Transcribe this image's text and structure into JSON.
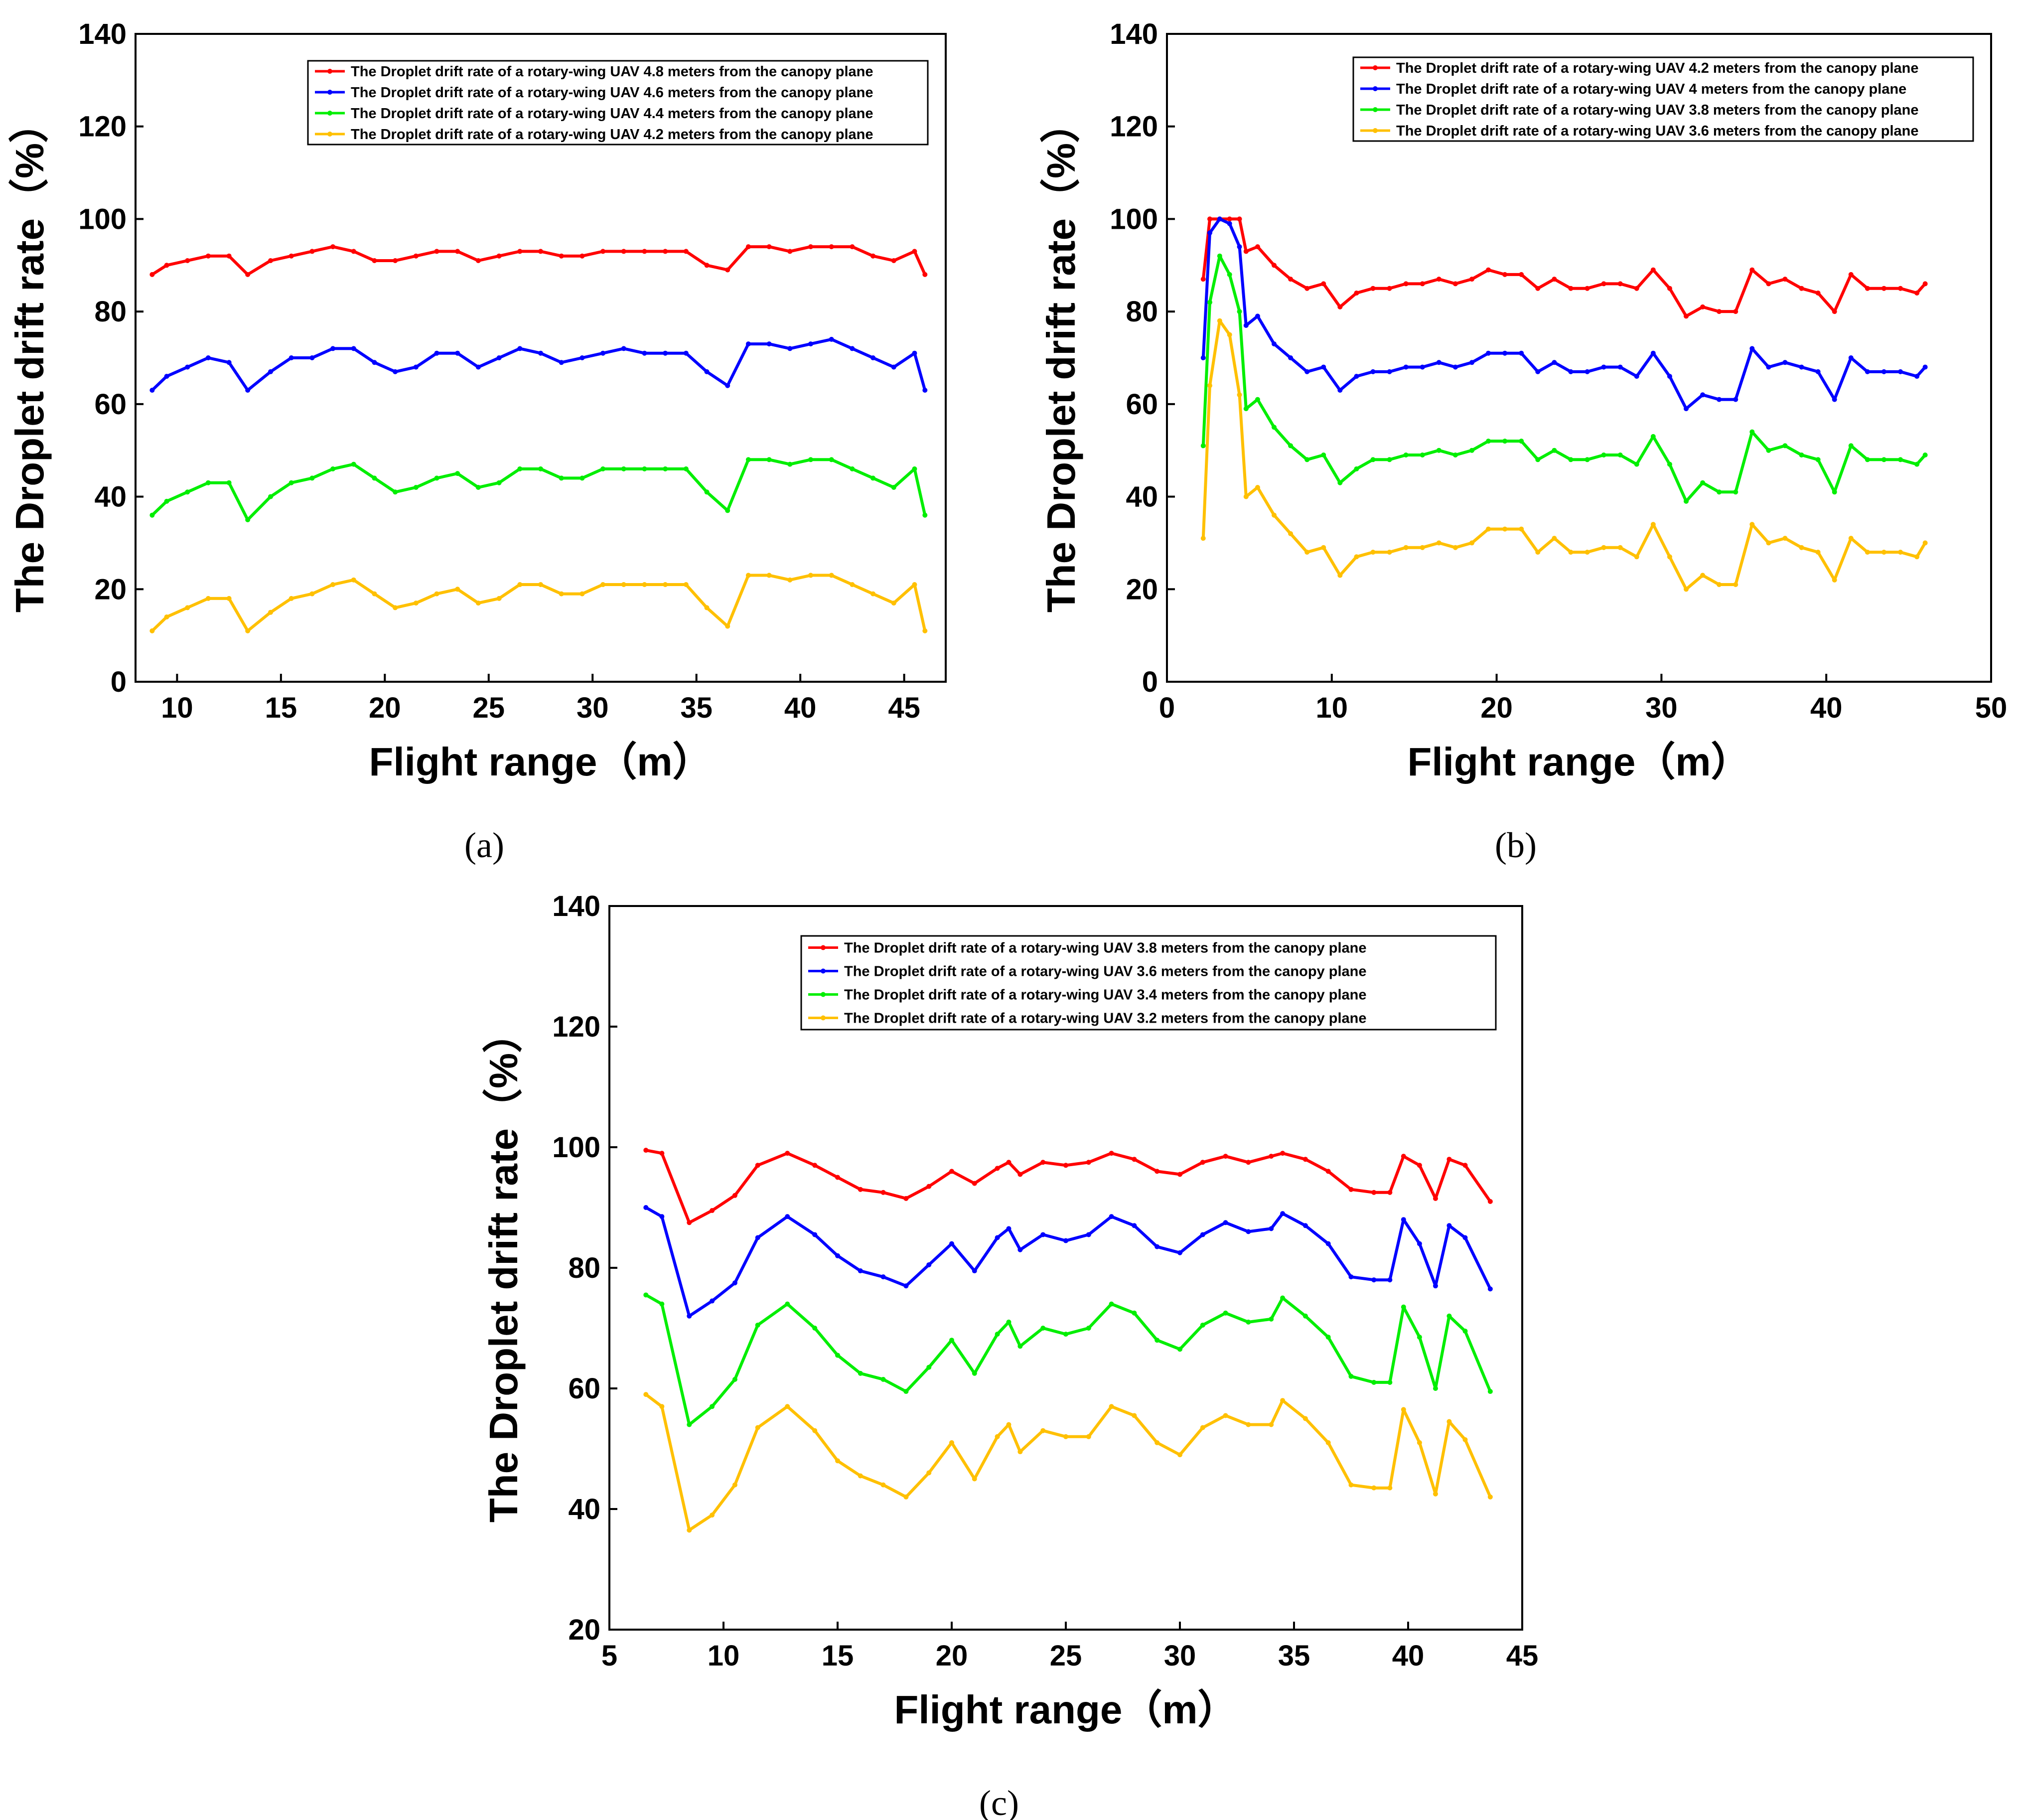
{
  "chart_data": [
    {
      "type": "line",
      "panel_label": "(a)",
      "xlabel": "Flight range（m）",
      "ylabel": "The Droplet drift rate（%）",
      "xlim": [
        8,
        47
      ],
      "ylim": [
        0,
        140
      ],
      "x_ticks": [
        10,
        15,
        20,
        25,
        30,
        35,
        40,
        45
      ],
      "y_ticks": [
        0,
        20,
        40,
        60,
        80,
        100,
        120,
        140
      ],
      "grid": false,
      "legend_position": "top-right",
      "x": [
        8.8,
        9.5,
        10.5,
        11.5,
        12.5,
        13.4,
        14.5,
        15.5,
        16.5,
        17.5,
        18.5,
        19.5,
        20.5,
        21.5,
        22.5,
        23.5,
        24.5,
        25.5,
        26.5,
        27.5,
        28.5,
        29.5,
        30.5,
        31.5,
        32.5,
        33.5,
        34.5,
        35.5,
        36.5,
        37.5,
        38.5,
        39.5,
        40.5,
        41.5,
        42.5,
        43.5,
        44.5,
        45.5,
        46.0
      ],
      "series": [
        {
          "name": "The Droplet drift rate of a rotary-wing UAV 4.8 meters from the canopy plane",
          "color": "#ff0000",
          "values": [
            88,
            90,
            91,
            92,
            92,
            88,
            91,
            92,
            93,
            94,
            93,
            91,
            91,
            92,
            93,
            93,
            91,
            92,
            93,
            93,
            92,
            92,
            93,
            93,
            93,
            93,
            93,
            90,
            89,
            94,
            94,
            93,
            94,
            94,
            94,
            92,
            91,
            93,
            88
          ]
        },
        {
          "name": "The Droplet drift rate of a rotary-wing UAV 4.6 meters from the canopy plane",
          "color": "#0000ff",
          "values": [
            63,
            66,
            68,
            70,
            69,
            63,
            67,
            70,
            70,
            72,
            72,
            69,
            67,
            68,
            71,
            71,
            68,
            70,
            72,
            71,
            69,
            70,
            71,
            72,
            71,
            71,
            71,
            67,
            64,
            73,
            73,
            72,
            73,
            74,
            72,
            70,
            68,
            71,
            63
          ]
        },
        {
          "name": "The Droplet drift rate of a rotary-wing UAV 4.4 meters from the canopy plane",
          "color": "#00ee00",
          "values": [
            36,
            39,
            41,
            43,
            43,
            35,
            40,
            43,
            44,
            46,
            47,
            44,
            41,
            42,
            44,
            45,
            42,
            43,
            46,
            46,
            44,
            44,
            46,
            46,
            46,
            46,
            46,
            41,
            37,
            48,
            48,
            47,
            48,
            48,
            46,
            44,
            42,
            46,
            36
          ]
        },
        {
          "name": "The Droplet drift rate of a rotary-wing UAV 4.2 meters from the canopy plane",
          "color": "#ffc000",
          "values": [
            11,
            14,
            16,
            18,
            18,
            11,
            15,
            18,
            19,
            21,
            22,
            19,
            16,
            17,
            19,
            20,
            17,
            18,
            21,
            21,
            19,
            19,
            21,
            21,
            21,
            21,
            21,
            16,
            12,
            23,
            23,
            22,
            23,
            23,
            21,
            19,
            17,
            21,
            11
          ]
        }
      ]
    },
    {
      "type": "line",
      "panel_label": "(b)",
      "xlabel": "Flight range（m）",
      "ylabel": "The Droplet drift rate（%）",
      "xlim": [
        0,
        50
      ],
      "ylim": [
        0,
        140
      ],
      "x_ticks": [
        0,
        10,
        20,
        30,
        40,
        50
      ],
      "y_ticks": [
        0,
        20,
        40,
        60,
        80,
        100,
        120,
        140
      ],
      "grid": false,
      "legend_position": "top-right",
      "x": [
        2.2,
        2.6,
        3.2,
        3.8,
        4.4,
        4.8,
        5.5,
        6.5,
        7.5,
        8.5,
        9.5,
        10.5,
        11.5,
        12.5,
        13.5,
        14.5,
        15.5,
        16.5,
        17.5,
        18.5,
        19.5,
        20.5,
        21.5,
        22.5,
        23.5,
        24.5,
        25.5,
        26.5,
        27.5,
        28.5,
        29.5,
        30.5,
        31.5,
        32.5,
        33.5,
        34.5,
        35.5,
        36.5,
        37.5,
        38.5,
        39.5,
        40.5,
        41.5,
        42.5,
        43.5,
        44.5,
        45.5,
        46.0
      ],
      "series": [
        {
          "name": "The Droplet drift rate of a rotary-wing UAV 4.2 meters from the canopy plane",
          "color": "#ff0000",
          "values": [
            87,
            100,
            100,
            100,
            100,
            93,
            94,
            90,
            87,
            85,
            86,
            81,
            84,
            85,
            85,
            86,
            86,
            87,
            86,
            87,
            89,
            88,
            88,
            85,
            87,
            85,
            85,
            86,
            86,
            85,
            89,
            85,
            79,
            81,
            80,
            80,
            89,
            86,
            87,
            85,
            84,
            80,
            88,
            85,
            85,
            85,
            84,
            86
          ]
        },
        {
          "name": "The Droplet drift rate of a rotary-wing UAV 4 meters from the canopy plane",
          "color": "#0000ff",
          "values": [
            70,
            97,
            100,
            99,
            94,
            77,
            79,
            73,
            70,
            67,
            68,
            63,
            66,
            67,
            67,
            68,
            68,
            69,
            68,
            69,
            71,
            71,
            71,
            67,
            69,
            67,
            67,
            68,
            68,
            66,
            71,
            66,
            59,
            62,
            61,
            61,
            72,
            68,
            69,
            68,
            67,
            61,
            70,
            67,
            67,
            67,
            66,
            68
          ]
        },
        {
          "name": "The Droplet drift rate of a rotary-wing UAV 3.8 meters from the canopy plane",
          "color": "#00ee00",
          "values": [
            51,
            82,
            92,
            88,
            80,
            59,
            61,
            55,
            51,
            48,
            49,
            43,
            46,
            48,
            48,
            49,
            49,
            50,
            49,
            50,
            52,
            52,
            52,
            48,
            50,
            48,
            48,
            49,
            49,
            47,
            53,
            47,
            39,
            43,
            41,
            41,
            54,
            50,
            51,
            49,
            48,
            41,
            51,
            48,
            48,
            48,
            47,
            49
          ]
        },
        {
          "name": "The Droplet drift rate of a rotary-wing UAV 3.6 meters from the canopy plane",
          "color": "#ffc000",
          "values": [
            31,
            64,
            78,
            75,
            62,
            40,
            42,
            36,
            32,
            28,
            29,
            23,
            27,
            28,
            28,
            29,
            29,
            30,
            29,
            30,
            33,
            33,
            33,
            28,
            31,
            28,
            28,
            29,
            29,
            27,
            34,
            27,
            20,
            23,
            21,
            21,
            34,
            30,
            31,
            29,
            28,
            22,
            31,
            28,
            28,
            28,
            27,
            30
          ]
        }
      ]
    },
    {
      "type": "line",
      "panel_label": "(c)",
      "xlabel": "Flight range（m）",
      "ylabel": "The Droplet drift rate（%）",
      "xlim": [
        5,
        45
      ],
      "ylim": [
        20,
        140
      ],
      "x_ticks": [
        5,
        10,
        15,
        20,
        25,
        30,
        35,
        40,
        45
      ],
      "y_ticks": [
        20,
        40,
        60,
        80,
        100,
        120,
        140
      ],
      "grid": false,
      "legend_position": "top-right",
      "x": [
        6.6,
        7.3,
        8.5,
        9.5,
        10.5,
        11.5,
        12.8,
        14.0,
        15.0,
        16.0,
        17.0,
        18.0,
        19.0,
        20.0,
        21.0,
        22.0,
        22.5,
        23.0,
        24.0,
        25.0,
        26.0,
        27.0,
        28.0,
        29.0,
        30.0,
        31.0,
        32.0,
        33.0,
        34.0,
        34.5,
        35.5,
        36.5,
        37.5,
        38.5,
        39.2,
        39.8,
        40.5,
        41.2,
        41.8,
        42.5,
        43.6
      ],
      "series": [
        {
          "name": "The Droplet drift rate of a rotary-wing UAV 3.8 meters from the canopy plane",
          "color": "#ff0000",
          "values": [
            99.5,
            99,
            87.5,
            89.5,
            92,
            97,
            99,
            97,
            95,
            93,
            92.5,
            91.5,
            93.5,
            96,
            94,
            96.5,
            97.5,
            95.5,
            97.5,
            97,
            97.5,
            99,
            98,
            96,
            95.5,
            97.5,
            98.5,
            97.5,
            98.5,
            99,
            98,
            96,
            93,
            92.5,
            92.5,
            98.5,
            97,
            91.5,
            98,
            97,
            91
          ]
        },
        {
          "name": "The Droplet drift rate of a rotary-wing UAV 3.6 meters from the canopy plane",
          "color": "#0000ff",
          "values": [
            90,
            88.5,
            72,
            74.5,
            77.5,
            85,
            88.5,
            85.5,
            82,
            79.5,
            78.5,
            77,
            80.5,
            84,
            79.5,
            85,
            86.5,
            83,
            85.5,
            84.5,
            85.5,
            88.5,
            87,
            83.5,
            82.5,
            85.5,
            87.5,
            86,
            86.5,
            89,
            87,
            84,
            78.5,
            78,
            78,
            88,
            84,
            77,
            87,
            85,
            76.5
          ]
        },
        {
          "name": "The Droplet drift rate of a rotary-wing UAV 3.4 meters from the canopy plane",
          "color": "#00ee00",
          "values": [
            75.5,
            74,
            54,
            57,
            61.5,
            70.5,
            74,
            70,
            65.5,
            62.5,
            61.5,
            59.5,
            63.5,
            68,
            62.5,
            69,
            71,
            67,
            70,
            69,
            70,
            74,
            72.5,
            68,
            66.5,
            70.5,
            72.5,
            71,
            71.5,
            75,
            72,
            68.5,
            62,
            61,
            61,
            73.5,
            68.5,
            60,
            72,
            69.5,
            59.5
          ]
        },
        {
          "name": "The Droplet drift rate of a rotary-wing UAV 3.2 meters from the canopy plane",
          "color": "#ffc000",
          "values": [
            59,
            57,
            36.5,
            39,
            44,
            53.5,
            57,
            53,
            48,
            45.5,
            44,
            42,
            46,
            51,
            45,
            52,
            54,
            49.5,
            53,
            52,
            52,
            57,
            55.5,
            51,
            49,
            53.5,
            55.5,
            54,
            54,
            58,
            55,
            51,
            44,
            43.5,
            43.5,
            56.5,
            51,
            42.5,
            54.5,
            51.5,
            42
          ]
        }
      ]
    }
  ]
}
